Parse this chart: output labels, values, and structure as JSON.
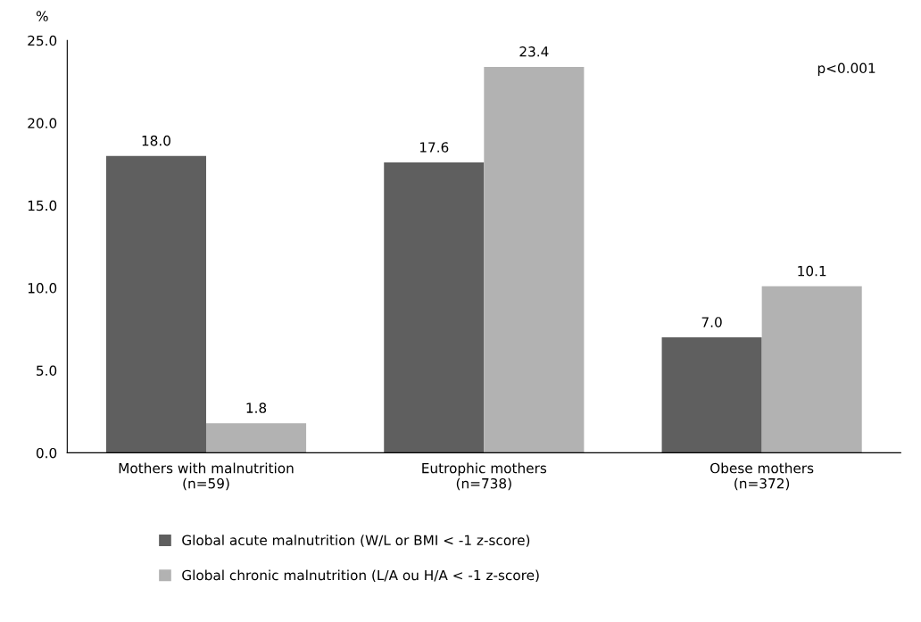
{
  "chart_data": {
    "type": "bar",
    "ylabel": "%",
    "categories": [
      "Mothers with malnutrition\n(n=59)",
      "Eutrophic mothers\n(n=738)",
      "Obese mothers\n(n=372)"
    ],
    "series": [
      {
        "name": "Global acute malnutrition (W/L or BMI < -1 z-score)",
        "color": "#5f5f5f",
        "values": [
          18.0,
          17.6,
          7.0
        ],
        "value_labels": [
          "18.0",
          "17.6",
          "7.0"
        ]
      },
      {
        "name": "Global chronic malnutrition (L/A ou H/A < -1 z-score)",
        "color": "#b2b2b2",
        "values": [
          1.8,
          23.4,
          10.1
        ],
        "value_labels": [
          "1.8",
          "23.4",
          "10.1"
        ]
      }
    ],
    "ylim": [
      0,
      25
    ],
    "yticks": [
      {
        "value": 0,
        "label": "0.0"
      },
      {
        "value": 5,
        "label": "5.0"
      },
      {
        "value": 10,
        "label": "10.0"
      },
      {
        "value": 15,
        "label": "15.0"
      },
      {
        "value": 20,
        "label": "20.0"
      },
      {
        "value": 25,
        "label": "25.0"
      }
    ],
    "annotations": [
      "p<0.001"
    ],
    "grid": false,
    "legend": "bottom"
  }
}
